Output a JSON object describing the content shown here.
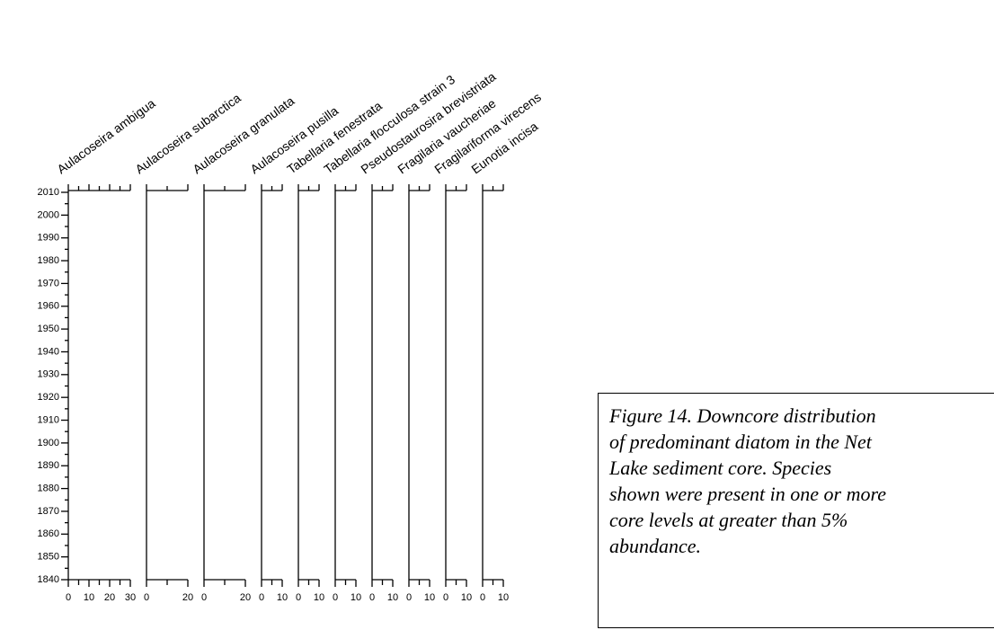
{
  "chart_data": {
    "type": "stratigraphic",
    "ylim": [
      1840,
      2010
    ],
    "yticks": [
      1840,
      1850,
      1860,
      1870,
      1880,
      1890,
      1900,
      1910,
      1920,
      1930,
      1940,
      1950,
      1960,
      1970,
      1980,
      1990,
      2000,
      2010
    ],
    "yticks_minor": [
      1845,
      1855,
      1865,
      1875,
      1885,
      1895,
      1905,
      1915,
      1925,
      1935,
      1945,
      1955,
      1965,
      1975,
      1985,
      1995,
      2005
    ],
    "panels": [
      {
        "name": "Aulacoseira ambigua",
        "xlim": [
          0,
          30
        ],
        "xticks": [
          0,
          10,
          20,
          30
        ],
        "xticks_minor": [
          5,
          15,
          25
        ]
      },
      {
        "name": "Aulacoseira subarctica",
        "xlim": [
          0,
          20
        ],
        "xticks": [
          0,
          20
        ],
        "xticks_minor": [
          10
        ]
      },
      {
        "name": "Aulacoseira granulata",
        "xlim": [
          0,
          20
        ],
        "xticks": [
          0,
          20
        ],
        "xticks_minor": [
          10
        ]
      },
      {
        "name": "Aulacoseira pusilla",
        "xlim": [
          0,
          10
        ],
        "xticks": [
          0,
          10
        ],
        "xticks_minor": [
          5
        ]
      },
      {
        "name": "Tabellaria fenestrata",
        "xlim": [
          0,
          10
        ],
        "xticks": [
          0,
          10
        ],
        "xticks_minor": [
          5
        ]
      },
      {
        "name": "Tabellaria flocculosa strain 3",
        "xlim": [
          0,
          10
        ],
        "xticks": [
          0,
          10
        ],
        "xticks_minor": [
          5
        ]
      },
      {
        "name": "Pseudostaurosira brevistriata",
        "xlim": [
          0,
          10
        ],
        "xticks": [
          0,
          10
        ],
        "xticks_minor": [
          5
        ]
      },
      {
        "name": "Fragilaria vaucheriae",
        "xlim": [
          0,
          10
        ],
        "xticks": [
          0,
          10
        ],
        "xticks_minor": [
          5
        ]
      },
      {
        "name": "Fragilariforma virecens",
        "xlim": [
          0,
          10
        ],
        "xticks": [
          0,
          10
        ],
        "xticks_minor": [
          5
        ]
      },
      {
        "name": "Eunotia incisa",
        "xlim": [
          0,
          10
        ],
        "xticks": [
          0,
          10
        ],
        "xticks_minor": [
          5
        ]
      }
    ]
  },
  "caption": "Figure 14. Downcore distribution\nof predominant diatom in the Net\nLake sediment core.  Species\nshown were present in one or more\ncore levels at greater than 5%\nabundance."
}
